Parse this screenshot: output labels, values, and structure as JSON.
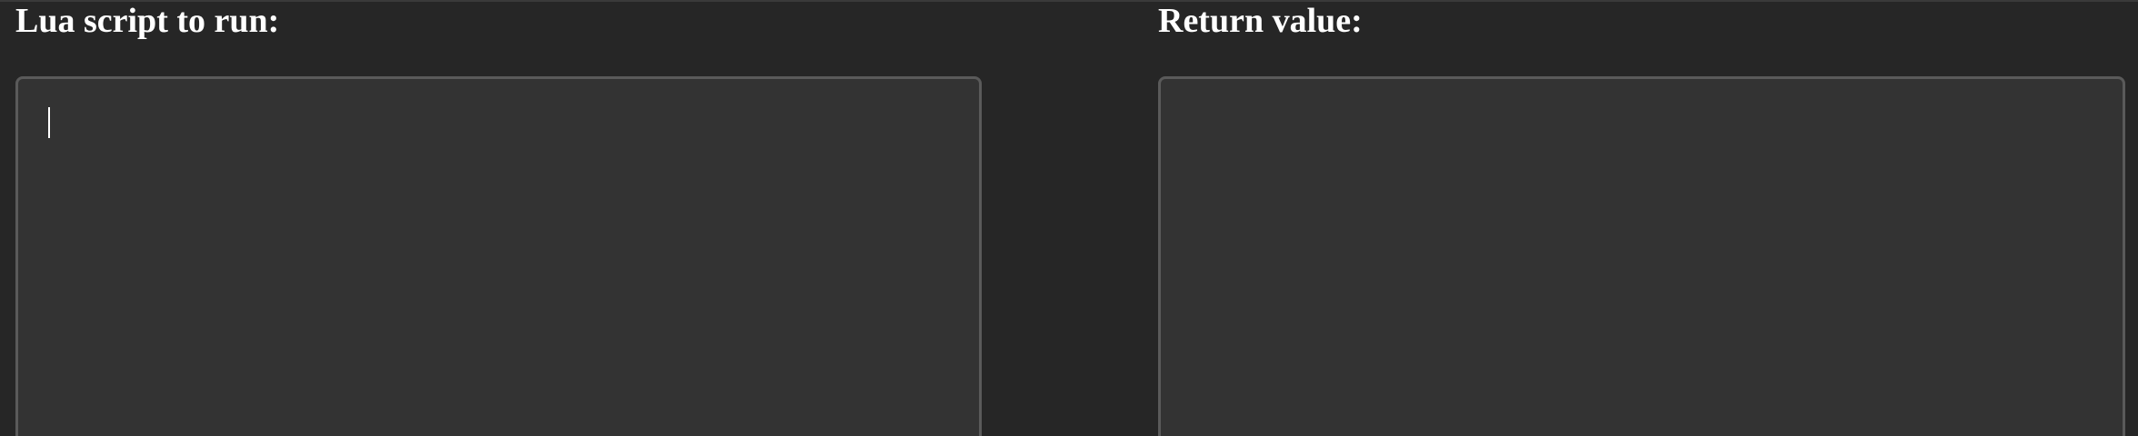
{
  "script_panel": {
    "title": "Lua script to run:",
    "input_value": ""
  },
  "result_panel": {
    "title": "Return value:",
    "output_value": ""
  },
  "colors": {
    "page_background": "#262626",
    "editor_background": "#333333",
    "editor_border": "#5a5a5a",
    "text": "#ffffff"
  }
}
